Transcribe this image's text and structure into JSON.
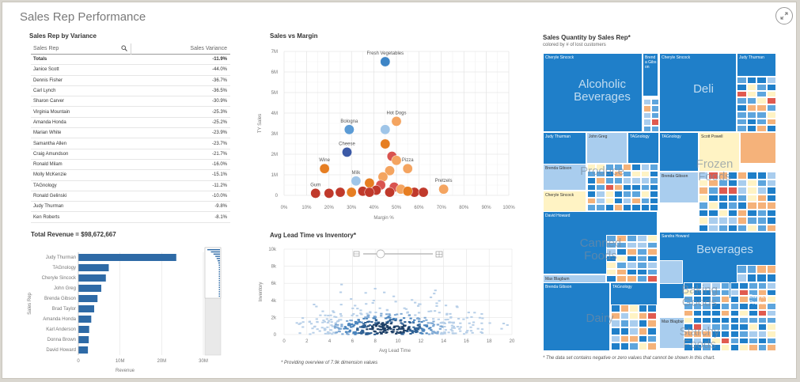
{
  "page": {
    "title": "Sales Rep Performance"
  },
  "variance": {
    "title": "Sales Rep by Variance",
    "col_rep": "Sales Rep",
    "col_var": "Sales Variance",
    "rows": [
      {
        "name": "Totals",
        "value": "-11.9%"
      },
      {
        "name": "Janice Scott",
        "value": "-44.0%"
      },
      {
        "name": "Dennis Fisher",
        "value": "-36.7%"
      },
      {
        "name": "Carl Lynch",
        "value": "-36.5%"
      },
      {
        "name": "Sharon Carver",
        "value": "-30.9%"
      },
      {
        "name": "Virginia Mountain",
        "value": "-25.3%"
      },
      {
        "name": "Amanda Honda",
        "value": "-25.2%"
      },
      {
        "name": "Marian White",
        "value": "-23.9%"
      },
      {
        "name": "Samantha Allen",
        "value": "-23.7%"
      },
      {
        "name": "Craig Amundson",
        "value": "-21.7%"
      },
      {
        "name": "Ronald Milam",
        "value": "-16.0%"
      },
      {
        "name": "Molly McKenzie",
        "value": "-15.1%"
      },
      {
        "name": "TAGnology",
        "value": "-11.2%"
      },
      {
        "name": "Ronald Gelinski",
        "value": "-10.0%"
      },
      {
        "name": "Judy Thurman",
        "value": "-9.8%"
      },
      {
        "name": "Ken Roberts",
        "value": "-8.1%"
      }
    ]
  },
  "revenue": {
    "total_label": "Total Revenue = $98,672,667"
  },
  "margin_title": "Sales vs Margin",
  "lead_title": "Avg Lead Time vs Inventory*",
  "lead_footnote": "* Providing overview of 7.9k dimension values",
  "treemap": {
    "title": "Sales Quantity by Sales Rep*",
    "subtitle": "colored by # of lost customers",
    "footnote": "* The data set contains negative or zero values that cannot be shown in this chart.",
    "labels": {
      "cheryle1": "Cheryle Sincock",
      "brenda1": "Brend a Gibs on",
      "cheryle2": "Cheryle Sincock",
      "judy1": "Judy Thurman",
      "alcoholic": "Alcoholic\nBeverages",
      "deli": "Deli",
      "judy2": "Judy Thurman",
      "john": "John Greg",
      "tag1": "TAGnology",
      "brenda2": "Brenda Gibson",
      "cheryle3": "Cheryle Sincock",
      "produce": "Produce",
      "tag2": "TAGnology",
      "brenda3": "Brenda Gibson",
      "scott": "Scott Powell",
      "frozen": "Frozen\nFoods",
      "david1": "David Howard",
      "max1": "Max Blagbum",
      "canned": "Canned\nFoods",
      "sandra": "Sandra Howard",
      "beverages": "Beverages",
      "baking": "Baking\nGoods",
      "brenda4": "Brenda Gibson",
      "tag3": "TAGnology",
      "dairy": "Dairy",
      "max2": "Max Blagbum",
      "starchy": "Starchy\nFoods",
      "cannedprod": "Canned\nProduct"
    }
  },
  "chart_data": [
    {
      "type": "bar",
      "title": "Total Revenue = $98,672,667",
      "orientation": "horizontal",
      "xlabel": "Revenue",
      "ylabel": "Sales Rep",
      "xlim": [
        0,
        30000000
      ],
      "x_ticks": [
        "0",
        "10M",
        "20M",
        "30M"
      ],
      "categories": [
        "Judy Thurman",
        "TAGnology",
        "Cheryle Sincock",
        "John Greg",
        "Brenda Gibson",
        "Brad Taylor",
        "Amanda Honda",
        "Karl Anderson",
        "Donna Brown",
        "David Howard"
      ],
      "values": [
        23500000,
        7300000,
        6600000,
        5500000,
        4600000,
        3800000,
        3100000,
        2600000,
        2500000,
        2300000
      ]
    },
    {
      "type": "scatter",
      "title": "Sales vs Margin",
      "xlabel": "Margin %",
      "ylabel": "TY Sales",
      "xlim": [
        0,
        100
      ],
      "ylim": [
        0,
        7000000
      ],
      "x_ticks": [
        "0%",
        "10%",
        "20%",
        "30%",
        "40%",
        "50%",
        "60%",
        "70%",
        "80%",
        "90%",
        "100%"
      ],
      "y_ticks": [
        "0",
        "1M",
        "2M",
        "3M",
        "4M",
        "5M",
        "6M",
        "7M"
      ],
      "points": [
        {
          "x": 45,
          "y": 6500000,
          "label": "Fresh Vegetables",
          "color": "#3d85c6"
        },
        {
          "x": 50,
          "y": 3600000,
          "label": "Hot Dogs",
          "color": "#f4a460"
        },
        {
          "x": 29,
          "y": 3200000,
          "label": "Bologna",
          "color": "#5b9bd5"
        },
        {
          "x": 45,
          "y": 3200000,
          "label": "",
          "color": "#9fc5e8"
        },
        {
          "x": 45,
          "y": 2500000,
          "label": "",
          "color": "#e67e22"
        },
        {
          "x": 28,
          "y": 2100000,
          "label": "Cheese",
          "color": "#3c5aa6"
        },
        {
          "x": 18,
          "y": 1300000,
          "label": "Wine",
          "color": "#e67e22"
        },
        {
          "x": 48,
          "y": 1900000,
          "label": "",
          "color": "#d9534f"
        },
        {
          "x": 50,
          "y": 1700000,
          "label": "",
          "color": "#f4a460"
        },
        {
          "x": 55,
          "y": 1300000,
          "label": "Pizza",
          "color": "#f4a460"
        },
        {
          "x": 47,
          "y": 1200000,
          "label": "",
          "color": "#f4a460"
        },
        {
          "x": 44,
          "y": 900000,
          "label": "",
          "color": "#f4a460"
        },
        {
          "x": 32,
          "y": 700000,
          "label": "Milk",
          "color": "#9fc5e8"
        },
        {
          "x": 38,
          "y": 600000,
          "label": "",
          "color": "#e67e22"
        },
        {
          "x": 43,
          "y": 500000,
          "label": "",
          "color": "#d9534f"
        },
        {
          "x": 49,
          "y": 400000,
          "label": "",
          "color": "#d9534f"
        },
        {
          "x": 52,
          "y": 300000,
          "label": "",
          "color": "#f4a460"
        },
        {
          "x": 41,
          "y": 250000,
          "label": "",
          "color": "#c0392b"
        },
        {
          "x": 35,
          "y": 200000,
          "label": "",
          "color": "#c0392b"
        },
        {
          "x": 30,
          "y": 150000,
          "label": "",
          "color": "#e67e22"
        },
        {
          "x": 25,
          "y": 150000,
          "label": "",
          "color": "#c0392b"
        },
        {
          "x": 20,
          "y": 100000,
          "label": "",
          "color": "#c0392b"
        },
        {
          "x": 14,
          "y": 100000,
          "label": "Gum",
          "color": "#c0392b"
        },
        {
          "x": 58,
          "y": 150000,
          "label": "",
          "color": "#c0392b"
        },
        {
          "x": 62,
          "y": 150000,
          "label": "",
          "color": "#c0392b"
        },
        {
          "x": 55,
          "y": 200000,
          "label": "",
          "color": "#e67e22"
        },
        {
          "x": 47,
          "y": 150000,
          "label": "",
          "color": "#c0392b"
        },
        {
          "x": 71,
          "y": 300000,
          "label": "Pretzels",
          "color": "#f4a460"
        },
        {
          "x": 38,
          "y": 150000,
          "label": "",
          "color": "#c0392b"
        }
      ]
    },
    {
      "type": "heatmap",
      "title": "Avg Lead Time vs Inventory*",
      "xlabel": "Avg Lead Time",
      "ylabel": "Inventory",
      "xlim": [
        0,
        20
      ],
      "ylim": [
        0,
        10000
      ],
      "x_ticks": [
        "0",
        "2",
        "4",
        "6",
        "8",
        "10",
        "12",
        "14",
        "16",
        "18",
        "20"
      ],
      "y_ticks": [
        "0",
        "2k",
        "4k",
        "6k",
        "8k",
        "10k"
      ],
      "density_center": {
        "x": 9,
        "y": 800
      }
    }
  ]
}
